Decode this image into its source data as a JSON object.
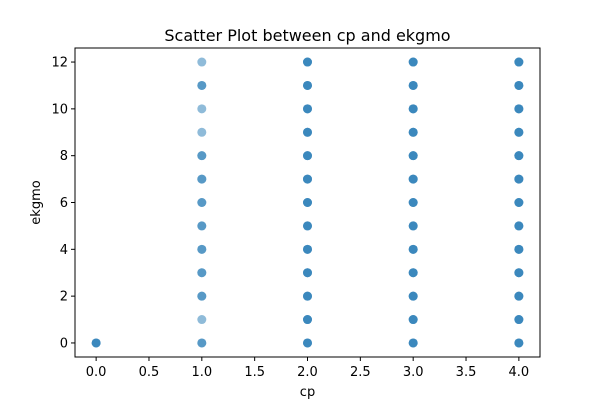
{
  "chart_data": {
    "type": "scatter",
    "title": "Scatter Plot between cp and ekgmo",
    "xlabel": "cp",
    "ylabel": "ekgmo",
    "xlim": [
      -0.2,
      4.2
    ],
    "ylim": [
      -0.6,
      12.6
    ],
    "xticks": [
      0.0,
      0.5,
      1.0,
      1.5,
      2.0,
      2.5,
      3.0,
      3.5,
      4.0
    ],
    "xtick_labels": [
      "0.0",
      "0.5",
      "1.0",
      "1.5",
      "2.0",
      "2.5",
      "3.0",
      "3.5",
      "4.0"
    ],
    "yticks": [
      0,
      2,
      4,
      6,
      8,
      10,
      12
    ],
    "ytick_labels": [
      "0",
      "2",
      "4",
      "6",
      "8",
      "10",
      "12"
    ],
    "grid": false,
    "marker_color": "#1f77b4",
    "marker_alpha": 0.5,
    "points": [
      {
        "x": 0,
        "y": 0
      },
      {
        "x": 0,
        "y": 0
      },
      {
        "x": 0,
        "y": 0
      },
      {
        "x": 1,
        "y": 0
      },
      {
        "x": 1,
        "y": 0
      },
      {
        "x": 1,
        "y": 1
      },
      {
        "x": 1,
        "y": 2
      },
      {
        "x": 1,
        "y": 2
      },
      {
        "x": 1,
        "y": 3
      },
      {
        "x": 1,
        "y": 3
      },
      {
        "x": 1,
        "y": 4
      },
      {
        "x": 1,
        "y": 4
      },
      {
        "x": 1,
        "y": 5
      },
      {
        "x": 1,
        "y": 5
      },
      {
        "x": 1,
        "y": 6
      },
      {
        "x": 1,
        "y": 6
      },
      {
        "x": 1,
        "y": 7
      },
      {
        "x": 1,
        "y": 7
      },
      {
        "x": 1,
        "y": 8
      },
      {
        "x": 1,
        "y": 8
      },
      {
        "x": 1,
        "y": 9
      },
      {
        "x": 1,
        "y": 10
      },
      {
        "x": 1,
        "y": 11
      },
      {
        "x": 1,
        "y": 11
      },
      {
        "x": 1,
        "y": 12
      },
      {
        "x": 2,
        "y": 0
      },
      {
        "x": 2,
        "y": 0
      },
      {
        "x": 2,
        "y": 0
      },
      {
        "x": 2,
        "y": 1
      },
      {
        "x": 2,
        "y": 1
      },
      {
        "x": 2,
        "y": 1
      },
      {
        "x": 2,
        "y": 2
      },
      {
        "x": 2,
        "y": 2
      },
      {
        "x": 2,
        "y": 2
      },
      {
        "x": 2,
        "y": 3
      },
      {
        "x": 2,
        "y": 3
      },
      {
        "x": 2,
        "y": 3
      },
      {
        "x": 2,
        "y": 4
      },
      {
        "x": 2,
        "y": 4
      },
      {
        "x": 2,
        "y": 4
      },
      {
        "x": 2,
        "y": 5
      },
      {
        "x": 2,
        "y": 5
      },
      {
        "x": 2,
        "y": 5
      },
      {
        "x": 2,
        "y": 6
      },
      {
        "x": 2,
        "y": 6
      },
      {
        "x": 2,
        "y": 6
      },
      {
        "x": 2,
        "y": 7
      },
      {
        "x": 2,
        "y": 7
      },
      {
        "x": 2,
        "y": 7
      },
      {
        "x": 2,
        "y": 8
      },
      {
        "x": 2,
        "y": 8
      },
      {
        "x": 2,
        "y": 8
      },
      {
        "x": 2,
        "y": 9
      },
      {
        "x": 2,
        "y": 9
      },
      {
        "x": 2,
        "y": 9
      },
      {
        "x": 2,
        "y": 10
      },
      {
        "x": 2,
        "y": 10
      },
      {
        "x": 2,
        "y": 10
      },
      {
        "x": 2,
        "y": 11
      },
      {
        "x": 2,
        "y": 11
      },
      {
        "x": 2,
        "y": 11
      },
      {
        "x": 2,
        "y": 12
      },
      {
        "x": 2,
        "y": 12
      },
      {
        "x": 2,
        "y": 12
      },
      {
        "x": 3,
        "y": 0
      },
      {
        "x": 3,
        "y": 0
      },
      {
        "x": 3,
        "y": 0
      },
      {
        "x": 3,
        "y": 1
      },
      {
        "x": 3,
        "y": 1
      },
      {
        "x": 3,
        "y": 1
      },
      {
        "x": 3,
        "y": 2
      },
      {
        "x": 3,
        "y": 2
      },
      {
        "x": 3,
        "y": 2
      },
      {
        "x": 3,
        "y": 3
      },
      {
        "x": 3,
        "y": 3
      },
      {
        "x": 3,
        "y": 3
      },
      {
        "x": 3,
        "y": 4
      },
      {
        "x": 3,
        "y": 4
      },
      {
        "x": 3,
        "y": 4
      },
      {
        "x": 3,
        "y": 5
      },
      {
        "x": 3,
        "y": 5
      },
      {
        "x": 3,
        "y": 5
      },
      {
        "x": 3,
        "y": 6
      },
      {
        "x": 3,
        "y": 6
      },
      {
        "x": 3,
        "y": 6
      },
      {
        "x": 3,
        "y": 7
      },
      {
        "x": 3,
        "y": 7
      },
      {
        "x": 3,
        "y": 7
      },
      {
        "x": 3,
        "y": 8
      },
      {
        "x": 3,
        "y": 8
      },
      {
        "x": 3,
        "y": 8
      },
      {
        "x": 3,
        "y": 9
      },
      {
        "x": 3,
        "y": 9
      },
      {
        "x": 3,
        "y": 9
      },
      {
        "x": 3,
        "y": 10
      },
      {
        "x": 3,
        "y": 10
      },
      {
        "x": 3,
        "y": 10
      },
      {
        "x": 3,
        "y": 11
      },
      {
        "x": 3,
        "y": 11
      },
      {
        "x": 3,
        "y": 11
      },
      {
        "x": 3,
        "y": 12
      },
      {
        "x": 3,
        "y": 12
      },
      {
        "x": 3,
        "y": 12
      },
      {
        "x": 4,
        "y": 0
      },
      {
        "x": 4,
        "y": 0
      },
      {
        "x": 4,
        "y": 0
      },
      {
        "x": 4,
        "y": 1
      },
      {
        "x": 4,
        "y": 1
      },
      {
        "x": 4,
        "y": 1
      },
      {
        "x": 4,
        "y": 2
      },
      {
        "x": 4,
        "y": 2
      },
      {
        "x": 4,
        "y": 2
      },
      {
        "x": 4,
        "y": 3
      },
      {
        "x": 4,
        "y": 3
      },
      {
        "x": 4,
        "y": 3
      },
      {
        "x": 4,
        "y": 4
      },
      {
        "x": 4,
        "y": 4
      },
      {
        "x": 4,
        "y": 4
      },
      {
        "x": 4,
        "y": 5
      },
      {
        "x": 4,
        "y": 5
      },
      {
        "x": 4,
        "y": 5
      },
      {
        "x": 4,
        "y": 6
      },
      {
        "x": 4,
        "y": 6
      },
      {
        "x": 4,
        "y": 6
      },
      {
        "x": 4,
        "y": 7
      },
      {
        "x": 4,
        "y": 7
      },
      {
        "x": 4,
        "y": 7
      },
      {
        "x": 4,
        "y": 8
      },
      {
        "x": 4,
        "y": 8
      },
      {
        "x": 4,
        "y": 8
      },
      {
        "x": 4,
        "y": 9
      },
      {
        "x": 4,
        "y": 9
      },
      {
        "x": 4,
        "y": 9
      },
      {
        "x": 4,
        "y": 10
      },
      {
        "x": 4,
        "y": 10
      },
      {
        "x": 4,
        "y": 10
      },
      {
        "x": 4,
        "y": 11
      },
      {
        "x": 4,
        "y": 11
      },
      {
        "x": 4,
        "y": 11
      },
      {
        "x": 4,
        "y": 12
      },
      {
        "x": 4,
        "y": 12
      },
      {
        "x": 4,
        "y": 12
      }
    ]
  }
}
